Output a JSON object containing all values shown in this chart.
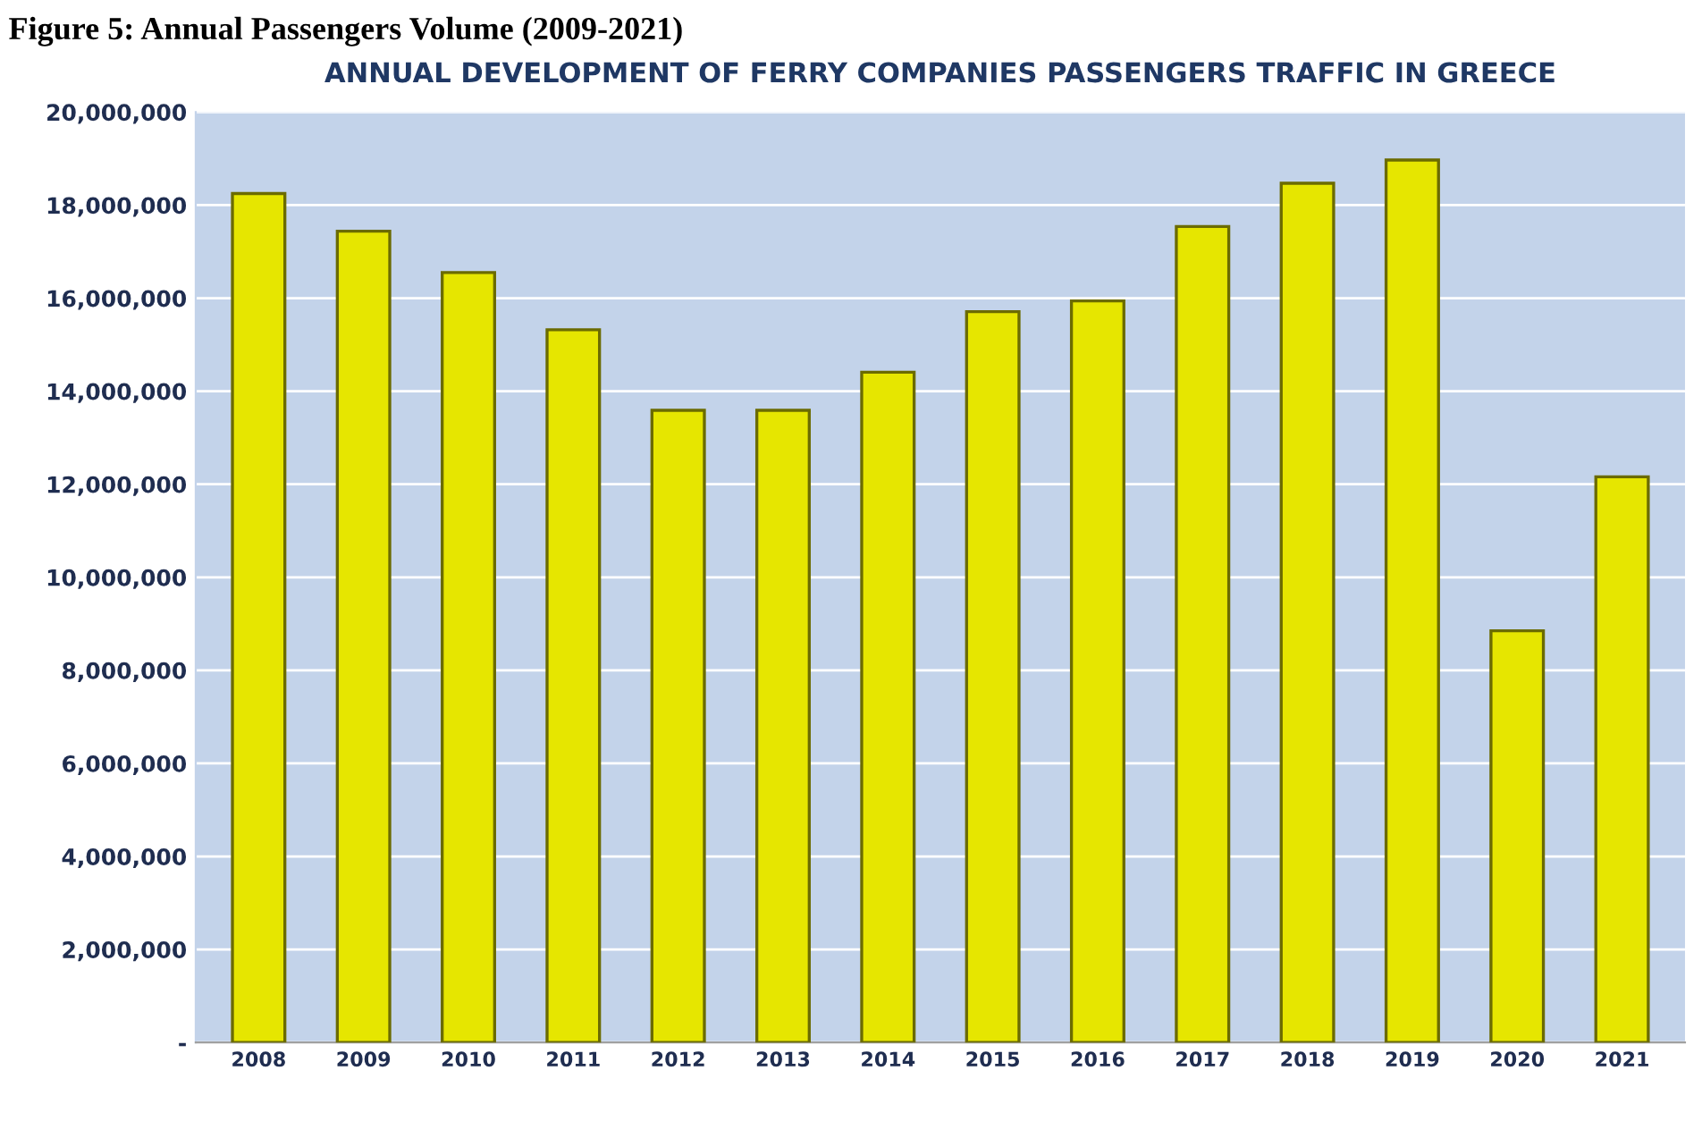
{
  "chart_data": {
    "type": "bar",
    "title": "ANNUAL DEVELOPMENT OF FERRY COMPANIES PASSENGERS TRAFFIC IN GREECE",
    "annotations": [
      "Figure 5: Annual Passengers Volume (2009-2021)"
    ],
    "categories": [
      "2008",
      "2009",
      "2010",
      "2011",
      "2012",
      "2013",
      "2014",
      "2015",
      "2016",
      "2017",
      "2018",
      "2019",
      "2020",
      "2021"
    ],
    "values": [
      18250000,
      17440000,
      16550000,
      15320000,
      13590000,
      13590000,
      14410000,
      15710000,
      15940000,
      17540000,
      18470000,
      18970000,
      8850000,
      12160000
    ],
    "color": "#e6e600",
    "ylim": [
      0,
      20000000
    ],
    "yticks": [
      {
        "value": 0,
        "label": "-"
      },
      {
        "value": 2000000,
        "label": "2,000,000"
      },
      {
        "value": 4000000,
        "label": "4,000,000"
      },
      {
        "value": 6000000,
        "label": "6,000,000"
      },
      {
        "value": 8000000,
        "label": "8,000,000"
      },
      {
        "value": 10000000,
        "label": "10,000,000"
      },
      {
        "value": 12000000,
        "label": "12,000,000"
      },
      {
        "value": 14000000,
        "label": "14,000,000"
      },
      {
        "value": 16000000,
        "label": "16,000,000"
      },
      {
        "value": 18000000,
        "label": "18,000,000"
      },
      {
        "value": 20000000,
        "label": "20,000,000"
      }
    ],
    "grid": "y"
  }
}
